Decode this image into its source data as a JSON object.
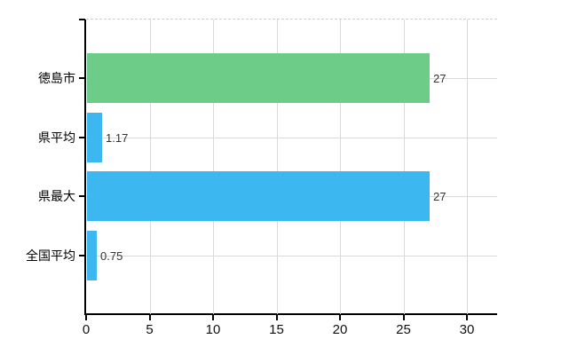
{
  "chart_data": {
    "type": "bar",
    "orientation": "horizontal",
    "title": "",
    "xlabel": "",
    "ylabel": "",
    "categories": [
      "徳島市",
      "県平均",
      "県最大",
      "全国平均"
    ],
    "values": [
      27,
      1.17,
      27,
      0.75
    ],
    "value_labels": [
      "27",
      "1.17",
      "27",
      "0.75"
    ],
    "bar_colors": [
      "#6DCC88",
      "#3DB7F0",
      "#3DB7F0",
      "#3DB7F0"
    ],
    "x_ticks": [
      0,
      5,
      10,
      15,
      20,
      25,
      30
    ],
    "x_tick_labels": [
      "0",
      "5",
      "10",
      "15",
      "20",
      "25",
      "30"
    ],
    "xlim": [
      0,
      32.4
    ],
    "grid": true,
    "legend": "none",
    "colors": {
      "grid": "#d9d9d9",
      "axis": "#000000",
      "category_label": "#000000",
      "value_label": "#333333",
      "top_border_dashed": "#cfcbd4",
      "background": "#ffffff"
    }
  }
}
